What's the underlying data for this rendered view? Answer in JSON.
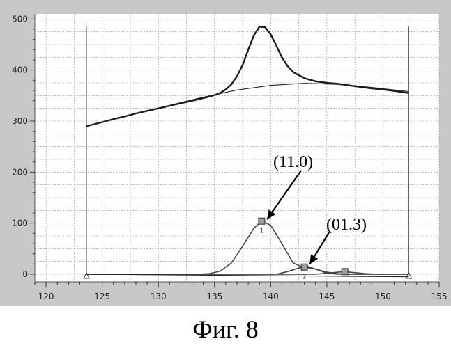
{
  "caption": "Фиг. 8",
  "colors": {
    "plot_bg": "#ffffff",
    "grid": "#8c8c8c",
    "frame_bg": "#c8c8c8",
    "data": "#1a1a1a",
    "peaks": "#444444"
  },
  "chart_data": {
    "type": "line",
    "title": "",
    "xlabel": "",
    "ylabel": "",
    "xlim": [
      119,
      155
    ],
    "ylim": [
      -15,
      510
    ],
    "xticks": [
      120,
      125,
      130,
      135,
      140,
      145,
      150,
      155
    ],
    "yticks": [
      0,
      100,
      200,
      300,
      400,
      500
    ],
    "grid": true,
    "range_limits": [
      123.6,
      152.3
    ],
    "series": [
      {
        "role": "measured",
        "x": [
          123.6,
          125,
          126,
          127,
          128,
          129,
          130,
          131,
          132,
          133,
          134,
          134.5,
          135,
          135.5,
          136,
          136.5,
          137,
          137.5,
          138,
          138.5,
          139,
          139.5,
          140,
          140.5,
          141,
          141.5,
          142,
          143,
          144,
          145,
          146,
          147,
          148,
          149,
          150,
          151,
          152.3
        ],
        "y": [
          290,
          298,
          304,
          309,
          315,
          320,
          325,
          330,
          335,
          340,
          345,
          348,
          351,
          355,
          362,
          372,
          388,
          410,
          440,
          468,
          485,
          484,
          470,
          448,
          425,
          408,
          396,
          384,
          378,
          375,
          373,
          370,
          367,
          364,
          362,
          359,
          355
        ]
      },
      {
        "role": "background",
        "x": [
          123.6,
          125,
          128,
          131,
          134,
          137,
          140,
          143,
          146,
          149,
          152.3
        ],
        "y": [
          290,
          298,
          315,
          331,
          347,
          361,
          370,
          374,
          372,
          366,
          358
        ]
      },
      {
        "role": "peak",
        "x": [
          123.6,
          133.5,
          134.5,
          135.5,
          136.5,
          137.5,
          138.5,
          139.2,
          140,
          141,
          142,
          142.8,
          143.2,
          144,
          145,
          146,
          147,
          148,
          149,
          150,
          151,
          152.3
        ],
        "y": [
          0,
          0,
          1,
          6,
          22,
          55,
          90,
          104,
          96,
          60,
          22,
          14,
          16,
          10,
          2,
          0,
          0,
          0,
          0,
          0,
          0,
          0
        ]
      },
      {
        "role": "peak",
        "x": [
          123.6,
          140.5,
          141.5,
          142.5,
          143,
          144,
          145,
          146,
          147,
          148,
          152.3
        ],
        "y": [
          0,
          0,
          5,
          12,
          14,
          10,
          4,
          1,
          0,
          0,
          0
        ]
      },
      {
        "role": "peak",
        "x": [
          123.6,
          144,
          145,
          146,
          146.6,
          147.5,
          148.5,
          149.5,
          152.3
        ],
        "y": [
          0,
          0,
          2,
          4,
          5,
          3,
          1,
          0,
          0
        ]
      },
      {
        "role": "baseline",
        "x": [
          123.6,
          152.3
        ],
        "y": [
          0,
          -5
        ]
      }
    ],
    "peak_markers": [
      {
        "x": 139.2,
        "y": 104,
        "label": "1"
      },
      {
        "x": 143.0,
        "y": 14,
        "label": "2"
      },
      {
        "x": 146.6,
        "y": 5,
        "label": ""
      }
    ],
    "annotations": [
      {
        "text": "(11.0)",
        "target_x": 139.3,
        "target_y": 102
      },
      {
        "text": "(01.3)",
        "target_x": 143.1,
        "target_y": 14
      }
    ]
  }
}
